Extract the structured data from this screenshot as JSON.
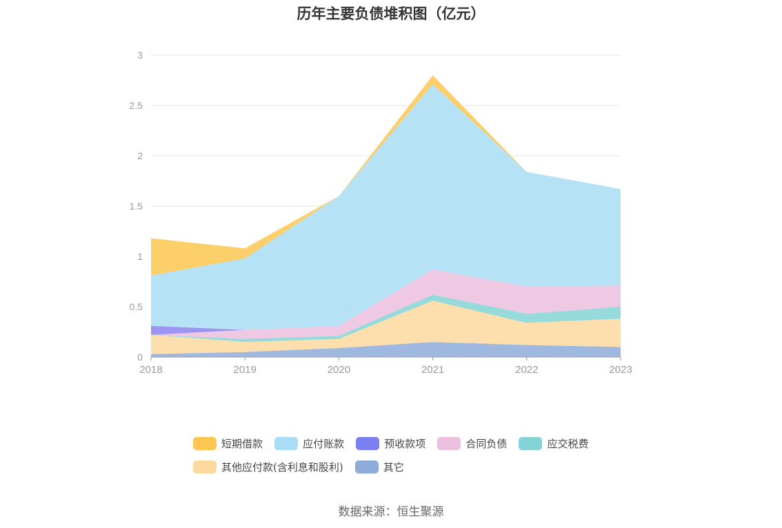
{
  "chart_data": {
    "type": "area",
    "stacked": true,
    "title": "历年主要负债堆积图（亿元）",
    "x": [
      "2018",
      "2019",
      "2020",
      "2021",
      "2022",
      "2023"
    ],
    "ylim": [
      0,
      3
    ],
    "yticks": [
      "0",
      "0.5",
      "1",
      "1.5",
      "2",
      "2.5",
      "3"
    ],
    "grid": true,
    "legend_position": "bottom",
    "series": [
      {
        "name": "其它",
        "color": "#8eacd9",
        "values": [
          0.03,
          0.05,
          0.09,
          0.15,
          0.12,
          0.1
        ]
      },
      {
        "name": "其他应付款(含利息和股利)",
        "color": "#fdd9a0",
        "values": [
          0.19,
          0.1,
          0.09,
          0.41,
          0.22,
          0.28
        ]
      },
      {
        "name": "应交税费",
        "color": "#84d3d6",
        "values": [
          0.0,
          0.03,
          0.03,
          0.06,
          0.09,
          0.12
        ]
      },
      {
        "name": "合同负债",
        "color": "#ecbfdf",
        "values": [
          0.0,
          0.09,
          0.1,
          0.25,
          0.27,
          0.21
        ]
      },
      {
        "name": "预收款项",
        "color": "#8b84f0",
        "values": [
          0.09,
          0.0,
          0.0,
          0.0,
          0.0,
          0.0
        ]
      },
      {
        "name": "应付账款",
        "color": "#a9ddf5",
        "values": [
          0.5,
          0.71,
          1.29,
          1.84,
          1.14,
          0.96
        ]
      },
      {
        "name": "短期借款",
        "color": "#fcc751",
        "values": [
          0.37,
          0.1,
          0.0,
          0.09,
          0.0,
          0.0
        ]
      }
    ]
  },
  "legend": {
    "items": [
      {
        "label": "短期借款",
        "color": "#fcc751"
      },
      {
        "label": "应付账款",
        "color": "#a9ddf5"
      },
      {
        "label": "预收款项",
        "color": "#7b7ff0"
      },
      {
        "label": "合同负债",
        "color": "#ecbfdf"
      },
      {
        "label": "应交税费",
        "color": "#84d3d6"
      },
      {
        "label": "其他应付款(含利息和股利)",
        "color": "#fdd9a0"
      },
      {
        "label": "其它",
        "color": "#8eacd9"
      }
    ]
  },
  "source": "数据来源：恒生聚源"
}
